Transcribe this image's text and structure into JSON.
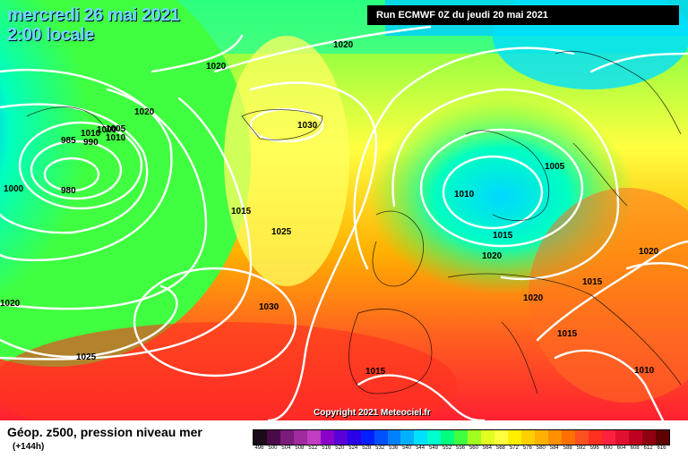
{
  "header": {
    "date_line1": "mercredi 26 mai 2021",
    "date_line2": "2:00 locale",
    "run": "Run ECMWF 0Z du jeudi 20 mai 2021"
  },
  "copyright": "Copyright 2021 Meteociel.fr",
  "footer": {
    "title": "Géop. z500, pression niveau mer",
    "subtitle": "(+144h)"
  },
  "colorbar": {
    "labels": [
      "496",
      "500",
      "504",
      "508",
      "512",
      "516",
      "520",
      "524",
      "528",
      "532",
      "536",
      "540",
      "544",
      "548",
      "552",
      "556",
      "560",
      "564",
      "568",
      "572",
      "576",
      "580",
      "584",
      "588",
      "592",
      "596",
      "600",
      "604",
      "608",
      "612",
      "616"
    ],
    "colors": [
      "#1a0a1a",
      "#4a0a4a",
      "#7a1a7a",
      "#a02aa0",
      "#c03cc0",
      "#8a00c8",
      "#5a00d8",
      "#2a00e8",
      "#0020ff",
      "#0050ff",
      "#0080ff",
      "#00b0ff",
      "#00e0ff",
      "#00ffd0",
      "#00ff80",
      "#40ff40",
      "#a0ff20",
      "#e0ff20",
      "#ffff40",
      "#fff000",
      "#ffd000",
      "#ffb000",
      "#ff9000",
      "#ff7000",
      "#ff5020",
      "#ff3020",
      "#ff2040",
      "#e01030",
      "#c00020",
      "#900010",
      "#600000"
    ]
  },
  "isobars": [
    "1020",
    "1020",
    "1020",
    "985",
    "990",
    "1000",
    "1005",
    "1010",
    "1010",
    "1000",
    "980",
    "1030",
    "1015",
    "1025",
    "1030",
    "1025",
    "1020",
    "1005",
    "1010",
    "1015",
    "1020",
    "1020",
    "1015",
    "1020",
    "1015",
    "1015",
    "1010"
  ]
}
